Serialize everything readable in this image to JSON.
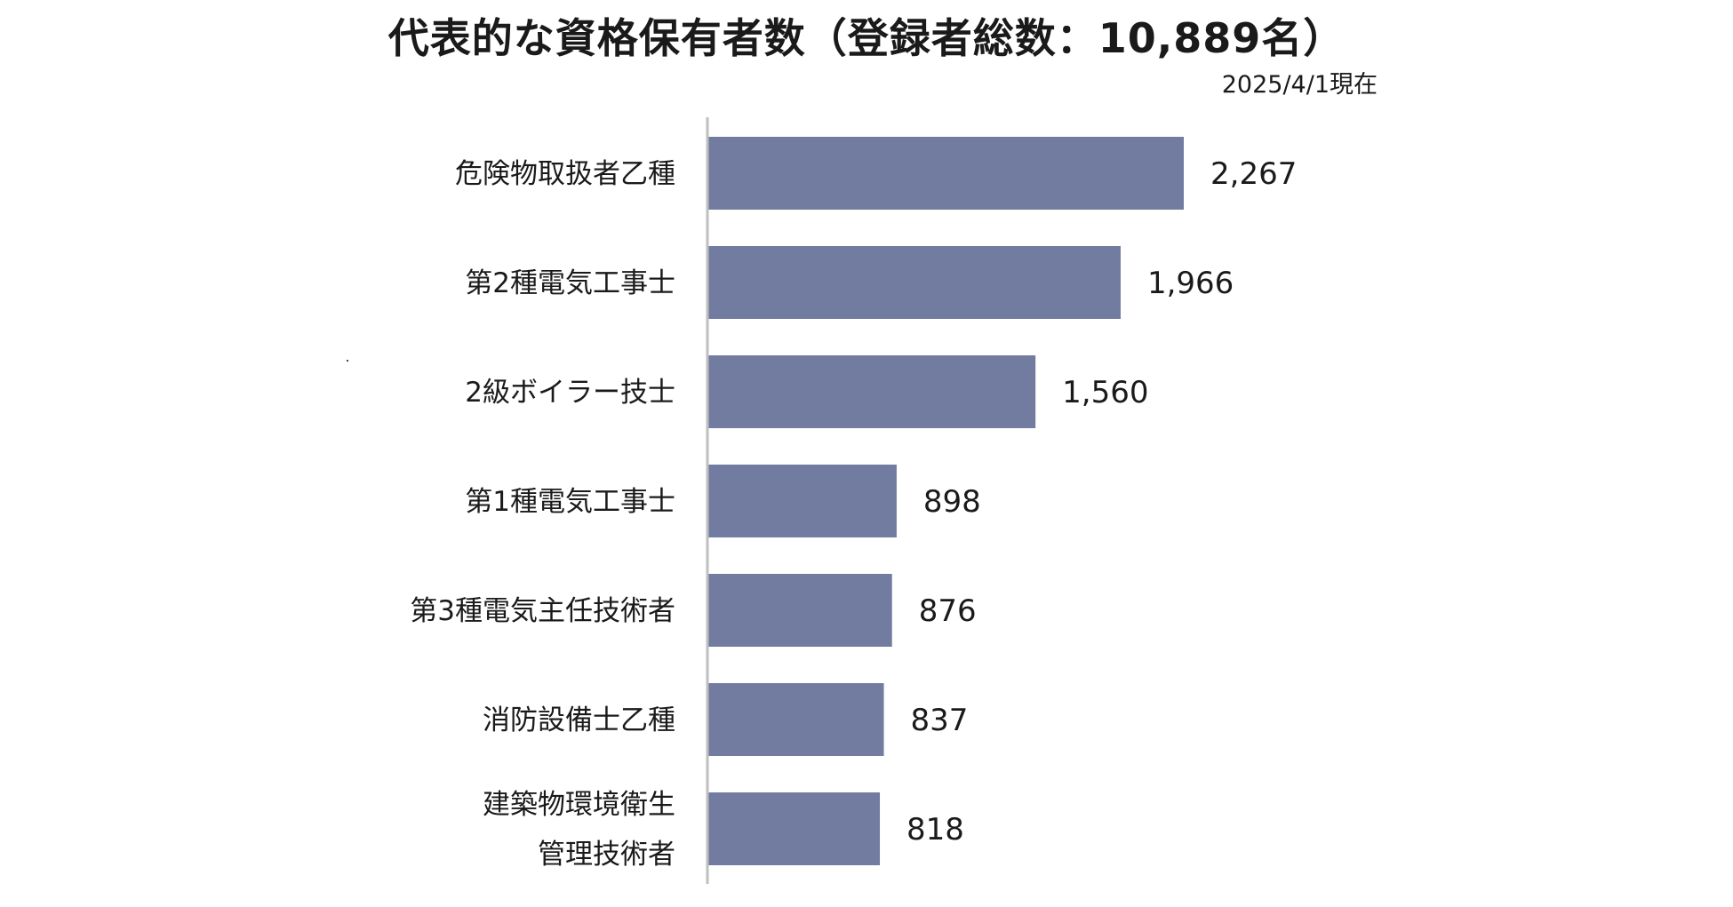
{
  "chart_data": {
    "type": "bar",
    "orientation": "horizontal",
    "title": "代表的な資格保有者数（登録者総数：10,889名）",
    "subtitle": "2025/4/1現在",
    "categories": [
      [
        "危険物取扱者乙種"
      ],
      [
        "第2種電気工事士"
      ],
      [
        "2級ボイラー技士"
      ],
      [
        "第1種電気工事士"
      ],
      [
        "第3種電気主任技術者"
      ],
      [
        "消防設備士乙種"
      ],
      [
        "建築物環境衛生",
        "管理技術者"
      ]
    ],
    "values": [
      2267,
      1966,
      1560,
      898,
      876,
      837,
      818
    ],
    "value_labels": [
      "2,267",
      "1,966",
      "1,560",
      "898",
      "876",
      "837",
      "818"
    ],
    "xlim": [
      0,
      2267
    ],
    "grid": false,
    "legend": "none",
    "bar_color": "#727ca0",
    "axis_color": "#bfbfbf"
  }
}
